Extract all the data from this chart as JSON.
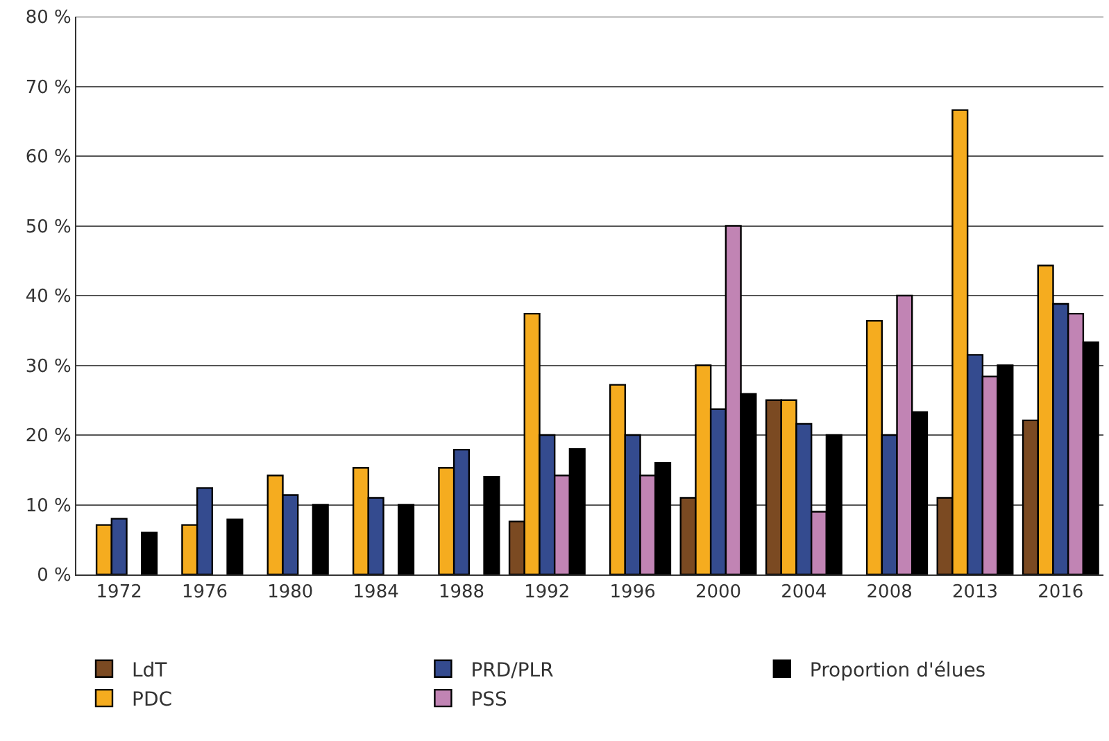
{
  "chart_data": {
    "type": "bar",
    "categories": [
      "1972",
      "1976",
      "1980",
      "1984",
      "1988",
      "1992",
      "1996",
      "2000",
      "2004",
      "2008",
      "2013",
      "2016"
    ],
    "series": [
      {
        "name": "LdT",
        "color": "#7b4a22",
        "values": [
          null,
          null,
          null,
          null,
          null,
          7.6,
          null,
          11.0,
          25.0,
          null,
          11.0,
          22.1
        ]
      },
      {
        "name": "PDC",
        "color": "#f5ac1f",
        "values": [
          7.1,
          7.1,
          14.2,
          15.3,
          15.3,
          37.4,
          27.2,
          30.0,
          25.0,
          36.4,
          66.6,
          44.3
        ]
      },
      {
        "name": "PRD/PLR",
        "color": "#344b8f",
        "values": [
          8.0,
          12.4,
          11.4,
          11.0,
          17.9,
          20.0,
          20.0,
          23.7,
          21.6,
          20.0,
          31.5,
          38.8
        ]
      },
      {
        "name": "PSS",
        "color": "#c184b4",
        "values": [
          null,
          null,
          null,
          null,
          null,
          14.2,
          14.2,
          50.0,
          9.0,
          40.0,
          28.4,
          37.4
        ]
      },
      {
        "name": "Proportion d'élues",
        "color": "#000000",
        "values": [
          6.0,
          7.9,
          10.0,
          10.0,
          14.0,
          18.0,
          16.0,
          25.9,
          20.0,
          23.3,
          30.0,
          33.3
        ]
      }
    ],
    "ylim": [
      0,
      80
    ],
    "yticks": [
      {
        "value": 0,
        "label": "0 %"
      },
      {
        "value": 10,
        "label": "10 %"
      },
      {
        "value": 20,
        "label": "20 %"
      },
      {
        "value": 30,
        "label": "30 %"
      },
      {
        "value": 40,
        "label": "40 %"
      },
      {
        "value": 50,
        "label": "50 %"
      },
      {
        "value": 60,
        "label": "60 %"
      },
      {
        "value": 70,
        "label": "70 %"
      },
      {
        "value": 80,
        "label": "80 %"
      }
    ],
    "grid": "y",
    "legend": "bottom"
  }
}
